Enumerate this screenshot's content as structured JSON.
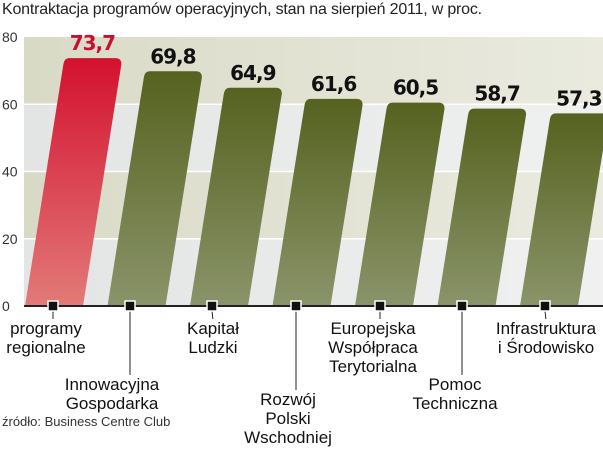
{
  "chart_data": {
    "type": "bar",
    "title": "Kontraktacja programów operacyjnych, stan na sierpień 2011, w proc.",
    "categories": [
      [
        "programy",
        "regionalne"
      ],
      [
        "Innowacyjna",
        "Gospodarka"
      ],
      [
        "Kapitał",
        "Ludzki"
      ],
      [
        "Rozwój",
        "Polski",
        "Wschodniej"
      ],
      [
        "Europejska",
        "Współpraca",
        "Terytorialna"
      ],
      [
        "Pomoc",
        "Techniczna"
      ],
      [
        "Infrastruktura",
        "i Środowisko"
      ]
    ],
    "values": [
      73.7,
      69.8,
      64.9,
      61.6,
      60.5,
      58.7,
      57.3
    ],
    "value_labels": [
      "73,7",
      "69,8",
      "64,9",
      "61,6",
      "60,5",
      "58,7",
      "57,3"
    ],
    "yticks": [
      "0",
      "20",
      "40",
      "60",
      "80"
    ],
    "ylim": [
      0,
      80
    ],
    "grid": true,
    "colors": {
      "highlight": "#d3112e",
      "bars": "#5b6a2a",
      "highlight_label": "#c8102e",
      "label": "#111111"
    },
    "source": "źródło: Business Centre Club"
  }
}
